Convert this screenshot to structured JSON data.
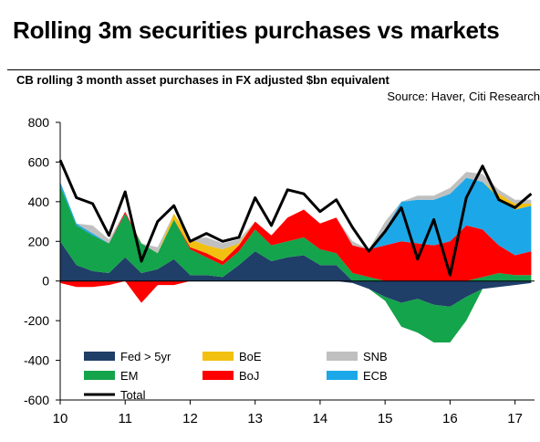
{
  "header": {
    "title": "Rolling 3m securities purchases vs markets",
    "subtitle": "CB rolling 3 month asset purchases in FX adjusted $bn equivalent",
    "source": "Source: Haver, Citi Research"
  },
  "colors": {
    "fed": "#1f3e68",
    "em": "#14a44b",
    "boj": "#ff0000",
    "ecb": "#1ca8e8",
    "boe": "#f2c010",
    "snb": "#c0c0c0",
    "total": "#000000"
  },
  "chart_data": {
    "type": "area",
    "stacking": "stacked-positive-and-negative",
    "title": "Rolling 3m securities purchases vs markets",
    "subtitle": "CB rolling 3 month asset purchases in FX adjusted $bn equivalent",
    "xlabel": "",
    "ylabel": "",
    "xlim": [
      2010.0,
      2017.3
    ],
    "ylim": [
      -600,
      800
    ],
    "yticks": [
      800,
      600,
      400,
      200,
      0,
      -200,
      -400,
      -600
    ],
    "xtick_labels": [
      "10",
      "11",
      "12",
      "13",
      "14",
      "15",
      "16",
      "17"
    ],
    "xtick_positions": [
      2010,
      2011,
      2012,
      2013,
      2014,
      2015,
      2016,
      2017
    ],
    "grid": false,
    "legend_placement": "bottom-left",
    "legend_order": [
      "Fed > 5yr",
      "BoE",
      "SNB",
      "EM",
      "BoJ",
      "ECB",
      "Total"
    ],
    "x": [
      2010.0,
      2010.25,
      2010.5,
      2010.75,
      2011.0,
      2011.25,
      2011.5,
      2011.75,
      2012.0,
      2012.25,
      2012.5,
      2012.75,
      2013.0,
      2013.25,
      2013.5,
      2013.75,
      2014.0,
      2014.25,
      2014.5,
      2014.75,
      2015.0,
      2015.25,
      2015.5,
      2015.75,
      2016.0,
      2016.25,
      2016.5,
      2016.75,
      2017.0,
      2017.25
    ],
    "series": [
      {
        "name": "Fed > 5yr",
        "key": "fed",
        "values": [
          200,
          80,
          50,
          40,
          120,
          40,
          60,
          110,
          30,
          30,
          20,
          80,
          150,
          100,
          120,
          130,
          80,
          80,
          -10,
          -40,
          -80,
          -110,
          -90,
          -120,
          -130,
          -80,
          -40,
          -30,
          -20,
          -10
        ]
      },
      {
        "name": "EM",
        "key": "em",
        "values": [
          280,
          200,
          180,
          150,
          220,
          150,
          80,
          200,
          130,
          90,
          60,
          70,
          110,
          80,
          80,
          90,
          80,
          60,
          40,
          20,
          -20,
          -120,
          -170,
          -190,
          -180,
          -120,
          20,
          40,
          30,
          30
        ]
      },
      {
        "name": "BoJ",
        "key": "boj",
        "values": [
          -10,
          -30,
          -30,
          -20,
          10,
          -110,
          -20,
          -20,
          10,
          20,
          20,
          30,
          40,
          50,
          120,
          140,
          130,
          180,
          140,
          140,
          180,
          200,
          190,
          180,
          200,
          280,
          240,
          140,
          100,
          120
        ]
      },
      {
        "name": "ECB",
        "key": "ecb",
        "values": [
          20,
          10,
          10,
          0,
          0,
          0,
          0,
          0,
          0,
          0,
          0,
          0,
          0,
          0,
          0,
          0,
          0,
          0,
          0,
          0,
          80,
          200,
          220,
          230,
          240,
          240,
          240,
          240,
          230,
          230
        ]
      },
      {
        "name": "BoE",
        "key": "boe",
        "values": [
          0,
          0,
          0,
          0,
          0,
          0,
          0,
          30,
          40,
          40,
          60,
          10,
          0,
          0,
          0,
          0,
          0,
          0,
          0,
          0,
          0,
          0,
          0,
          0,
          0,
          0,
          0,
          20,
          30,
          10
        ]
      },
      {
        "name": "SNB",
        "key": "snb",
        "values": [
          0,
          0,
          40,
          20,
          0,
          0,
          30,
          0,
          0,
          40,
          30,
          20,
          0,
          0,
          0,
          0,
          0,
          0,
          20,
          0,
          40,
          0,
          20,
          20,
          30,
          30,
          40,
          20,
          20,
          20
        ]
      },
      {
        "name": "Total",
        "key": "total",
        "type": "line",
        "values": [
          610,
          420,
          390,
          230,
          450,
          100,
          300,
          380,
          200,
          240,
          200,
          220,
          420,
          280,
          460,
          440,
          350,
          410,
          270,
          150,
          250,
          370,
          110,
          310,
          30,
          420,
          580,
          410,
          370,
          440
        ]
      }
    ]
  }
}
